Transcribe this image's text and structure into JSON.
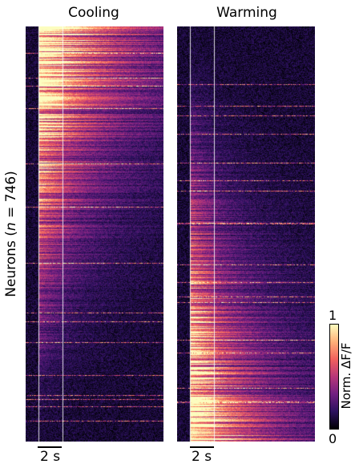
{
  "chart_data": [
    {
      "type": "heatmap",
      "title": "Cooling",
      "ylabel_prefix": "Neurons (",
      "ylabel_var": "n",
      "ylabel_suffix": " = 746)",
      "n_rows": 746,
      "scalebar_label": "2 s",
      "scalebar_seconds": 2,
      "stimulus_window_seconds": [
        0,
        2
      ],
      "sort": "descending early response",
      "peak_response_region": "top rows during stimulus window"
    },
    {
      "type": "heatmap",
      "title": "Warming",
      "n_rows": 746,
      "scalebar_label": "2 s",
      "scalebar_seconds": 2,
      "stimulus_window_seconds": [
        0,
        2
      ],
      "peak_response_region": "bottom rows during stimulus window"
    }
  ],
  "colorbar": {
    "label": "Norm. ΔF/F",
    "min_label": "0",
    "max_label": "1",
    "range": [
      0,
      1
    ],
    "colormap": "inferno"
  }
}
